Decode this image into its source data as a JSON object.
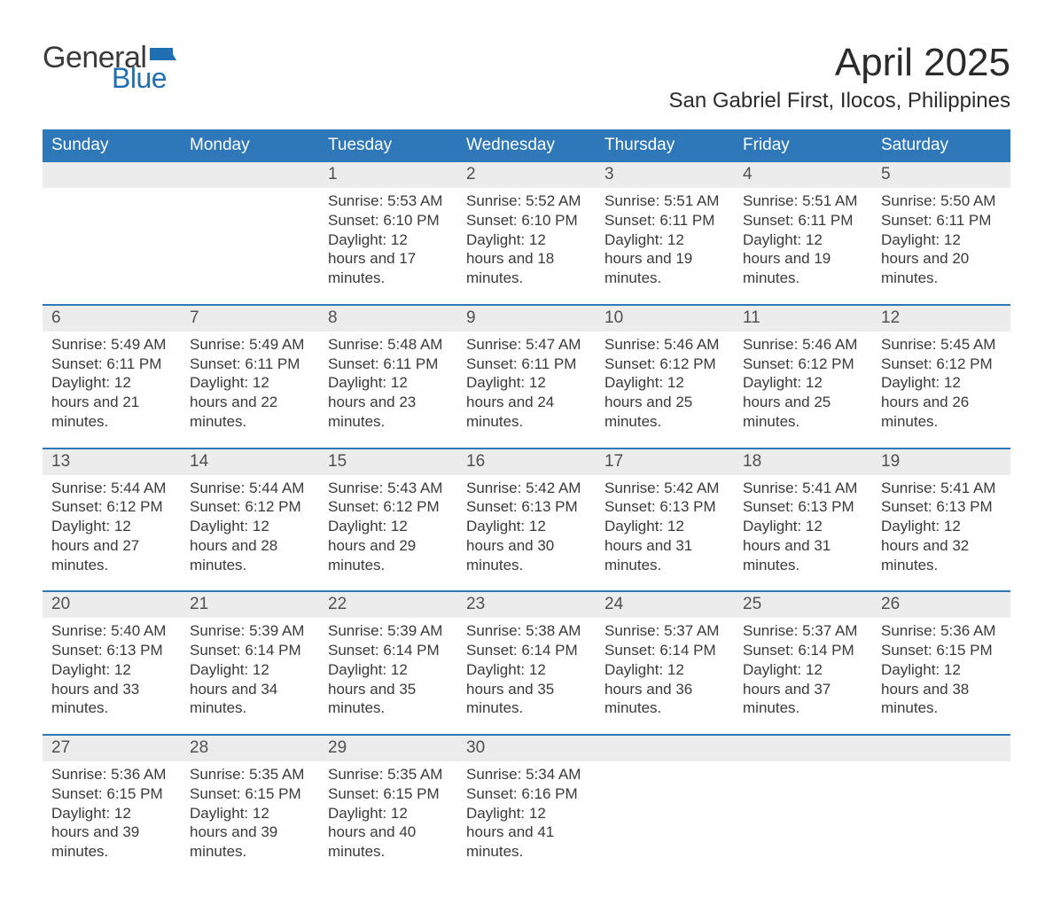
{
  "logo": {
    "text_general": "General",
    "text_blue": "Blue",
    "flag_color": "#1f6fb2"
  },
  "title": "April 2025",
  "location": "San Gabriel First, Ilocos, Philippines",
  "colors": {
    "header_bg": "#2e77b8",
    "header_text": "#ffffff",
    "daynum_bg": "#ececec",
    "week_divider": "#2e77b8",
    "body_text": "#3a3a3a",
    "logo_blue": "#1f6fb2",
    "page_bg": "#ffffff"
  },
  "typography": {
    "title_fontsize": 44,
    "location_fontsize": 24,
    "weekday_fontsize": 19,
    "daynum_fontsize": 19,
    "body_fontsize": 17,
    "font_family": "Arial"
  },
  "weekdays": [
    "Sunday",
    "Monday",
    "Tuesday",
    "Wednesday",
    "Thursday",
    "Friday",
    "Saturday"
  ],
  "weeks": [
    [
      null,
      null,
      {
        "n": "1",
        "sunrise": "5:53 AM",
        "sunset": "6:10 PM",
        "daylight": "12 hours and 17 minutes."
      },
      {
        "n": "2",
        "sunrise": "5:52 AM",
        "sunset": "6:10 PM",
        "daylight": "12 hours and 18 minutes."
      },
      {
        "n": "3",
        "sunrise": "5:51 AM",
        "sunset": "6:11 PM",
        "daylight": "12 hours and 19 minutes."
      },
      {
        "n": "4",
        "sunrise": "5:51 AM",
        "sunset": "6:11 PM",
        "daylight": "12 hours and 19 minutes."
      },
      {
        "n": "5",
        "sunrise": "5:50 AM",
        "sunset": "6:11 PM",
        "daylight": "12 hours and 20 minutes."
      }
    ],
    [
      {
        "n": "6",
        "sunrise": "5:49 AM",
        "sunset": "6:11 PM",
        "daylight": "12 hours and 21 minutes."
      },
      {
        "n": "7",
        "sunrise": "5:49 AM",
        "sunset": "6:11 PM",
        "daylight": "12 hours and 22 minutes."
      },
      {
        "n": "8",
        "sunrise": "5:48 AM",
        "sunset": "6:11 PM",
        "daylight": "12 hours and 23 minutes."
      },
      {
        "n": "9",
        "sunrise": "5:47 AM",
        "sunset": "6:11 PM",
        "daylight": "12 hours and 24 minutes."
      },
      {
        "n": "10",
        "sunrise": "5:46 AM",
        "sunset": "6:12 PM",
        "daylight": "12 hours and 25 minutes."
      },
      {
        "n": "11",
        "sunrise": "5:46 AM",
        "sunset": "6:12 PM",
        "daylight": "12 hours and 25 minutes."
      },
      {
        "n": "12",
        "sunrise": "5:45 AM",
        "sunset": "6:12 PM",
        "daylight": "12 hours and 26 minutes."
      }
    ],
    [
      {
        "n": "13",
        "sunrise": "5:44 AM",
        "sunset": "6:12 PM",
        "daylight": "12 hours and 27 minutes."
      },
      {
        "n": "14",
        "sunrise": "5:44 AM",
        "sunset": "6:12 PM",
        "daylight": "12 hours and 28 minutes."
      },
      {
        "n": "15",
        "sunrise": "5:43 AM",
        "sunset": "6:12 PM",
        "daylight": "12 hours and 29 minutes."
      },
      {
        "n": "16",
        "sunrise": "5:42 AM",
        "sunset": "6:13 PM",
        "daylight": "12 hours and 30 minutes."
      },
      {
        "n": "17",
        "sunrise": "5:42 AM",
        "sunset": "6:13 PM",
        "daylight": "12 hours and 31 minutes."
      },
      {
        "n": "18",
        "sunrise": "5:41 AM",
        "sunset": "6:13 PM",
        "daylight": "12 hours and 31 minutes."
      },
      {
        "n": "19",
        "sunrise": "5:41 AM",
        "sunset": "6:13 PM",
        "daylight": "12 hours and 32 minutes."
      }
    ],
    [
      {
        "n": "20",
        "sunrise": "5:40 AM",
        "sunset": "6:13 PM",
        "daylight": "12 hours and 33 minutes."
      },
      {
        "n": "21",
        "sunrise": "5:39 AM",
        "sunset": "6:14 PM",
        "daylight": "12 hours and 34 minutes."
      },
      {
        "n": "22",
        "sunrise": "5:39 AM",
        "sunset": "6:14 PM",
        "daylight": "12 hours and 35 minutes."
      },
      {
        "n": "23",
        "sunrise": "5:38 AM",
        "sunset": "6:14 PM",
        "daylight": "12 hours and 35 minutes."
      },
      {
        "n": "24",
        "sunrise": "5:37 AM",
        "sunset": "6:14 PM",
        "daylight": "12 hours and 36 minutes."
      },
      {
        "n": "25",
        "sunrise": "5:37 AM",
        "sunset": "6:14 PM",
        "daylight": "12 hours and 37 minutes."
      },
      {
        "n": "26",
        "sunrise": "5:36 AM",
        "sunset": "6:15 PM",
        "daylight": "12 hours and 38 minutes."
      }
    ],
    [
      {
        "n": "27",
        "sunrise": "5:36 AM",
        "sunset": "6:15 PM",
        "daylight": "12 hours and 39 minutes."
      },
      {
        "n": "28",
        "sunrise": "5:35 AM",
        "sunset": "6:15 PM",
        "daylight": "12 hours and 39 minutes."
      },
      {
        "n": "29",
        "sunrise": "5:35 AM",
        "sunset": "6:15 PM",
        "daylight": "12 hours and 40 minutes."
      },
      {
        "n": "30",
        "sunrise": "5:34 AM",
        "sunset": "6:16 PM",
        "daylight": "12 hours and 41 minutes."
      },
      null,
      null,
      null
    ]
  ],
  "labels": {
    "sunrise": "Sunrise: ",
    "sunset": "Sunset: ",
    "daylight": "Daylight: "
  }
}
